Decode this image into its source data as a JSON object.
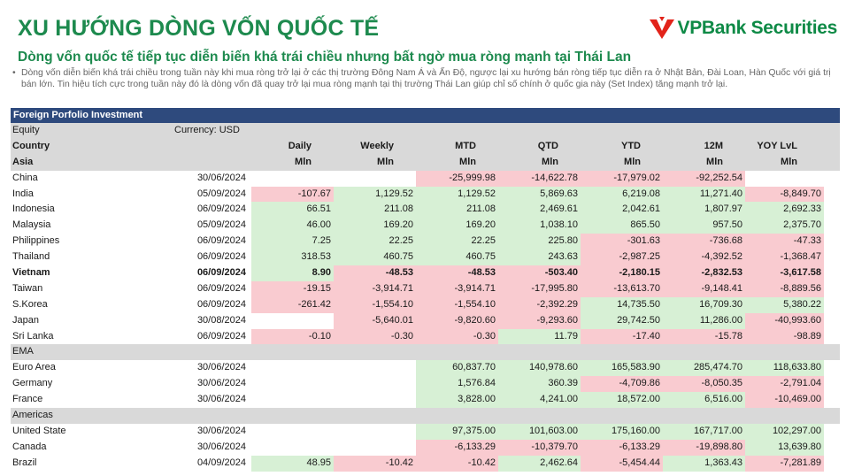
{
  "header": {
    "title": "XU HƯỚNG DÒNG VỐN QUỐC TẾ",
    "logo_text": "VPBank Securities",
    "subtitle": "Dòng vốn quốc tế tiếp tục diễn biến khá trái chiều nhưng bất ngờ mua ròng mạnh tại Thái Lan",
    "bullet": "Dòng vốn diễn biến khá trái chiều trong tuần này khi mua ròng trở lại ở các thị trường Đông Nam Á và Ấn Độ, ngược lại xu hướng bán ròng tiếp tục diễn ra ở Nhật Bản, Đài Loan, Hàn Quốc với giá trị bán lớn. Tin hiệu tích cực trong tuần này đó là dòng vốn đã quay trở lại mua ròng mạnh tại thị trường Thái Lan giúp chỉ số chính ở quốc gia này (Set Index) tăng mạnh trở lại.",
    "bullet_mark": "•"
  },
  "colors": {
    "brand_green": "#1d8a4e",
    "logo_red": "#e2231a",
    "table_header_bg": "#2e4a7d",
    "positive_bg": "#d7f0d5",
    "negative_bg": "#f9cbd0",
    "section_bg": "#d9d9d9"
  },
  "table": {
    "title": "Foreign Porfolio Investment",
    "equity_label": "Equity",
    "currency_label": "Currency: USD",
    "country_label": "Country",
    "asia_label": "Asia",
    "columns": [
      "Daily",
      "Weekly",
      "MTD",
      "QTD",
      "YTD",
      "12M",
      "YOY LvL"
    ],
    "unit": "Mln",
    "sections": [
      {
        "name": "Asia",
        "rows": [
          {
            "country": "China",
            "date": "30/06/2024",
            "values": [
              "",
              "",
              "-25,999.98",
              "-14,622.78",
              "-17,979.02",
              "-92,252.54",
              ""
            ]
          },
          {
            "country": "India",
            "date": "05/09/2024",
            "values": [
              "-107.67",
              "1,129.52",
              "1,129.52",
              "5,869.63",
              "6,219.08",
              "11,271.40",
              "-8,849.70"
            ]
          },
          {
            "country": "Indonesia",
            "date": "06/09/2024",
            "values": [
              "66.51",
              "211.08",
              "211.08",
              "2,469.61",
              "2,042.61",
              "1,807.97",
              "2,692.33"
            ]
          },
          {
            "country": "Malaysia",
            "date": "05/09/2024",
            "values": [
              "46.00",
              "169.20",
              "169.20",
              "1,038.10",
              "865.50",
              "957.50",
              "2,375.70"
            ]
          },
          {
            "country": "Philippines",
            "date": "06/09/2024",
            "values": [
              "7.25",
              "22.25",
              "22.25",
              "225.80",
              "-301.63",
              "-736.68",
              "-47.33"
            ]
          },
          {
            "country": "Thailand",
            "date": "06/09/2024",
            "values": [
              "318.53",
              "460.75",
              "460.75",
              "243.63",
              "-2,987.25",
              "-4,392.52",
              "-1,368.47"
            ]
          },
          {
            "country": "Vietnam",
            "date": "06/09/2024",
            "bold": true,
            "values": [
              "8.90",
              "-48.53",
              "-48.53",
              "-503.40",
              "-2,180.15",
              "-2,832.53",
              "-3,617.58"
            ]
          },
          {
            "country": "Taiwan",
            "date": "06/09/2024",
            "values": [
              "-19.15",
              "-3,914.71",
              "-3,914.71",
              "-17,995.80",
              "-13,613.70",
              "-9,148.41",
              "-8,889.56"
            ]
          },
          {
            "country": "S.Korea",
            "date": "06/09/2024",
            "values": [
              "-261.42",
              "-1,554.10",
              "-1,554.10",
              "-2,392.29",
              "14,735.50",
              "16,709.30",
              "5,380.22"
            ]
          },
          {
            "country": "Japan",
            "date": "30/08/2024",
            "values": [
              "",
              "-5,640.01",
              "-9,820.60",
              "-9,293.60",
              "29,742.50",
              "11,286.00",
              "-40,993.60"
            ]
          },
          {
            "country": "Sri Lanka",
            "date": "06/09/2024",
            "values": [
              "-0.10",
              "-0.30",
              "-0.30",
              "11.79",
              "-17.40",
              "-15.78",
              "-98.89"
            ]
          }
        ]
      },
      {
        "name": "EMA",
        "rows": [
          {
            "country": "Euro Area",
            "date": "30/06/2024",
            "values": [
              "",
              "",
              "60,837.70",
              "140,978.60",
              "165,583.90",
              "285,474.70",
              "118,633.80"
            ]
          },
          {
            "country": "Germany",
            "date": "30/06/2024",
            "values": [
              "",
              "",
              "1,576.84",
              "360.39",
              "-4,709.86",
              "-8,050.35",
              "-2,791.04"
            ]
          },
          {
            "country": "France",
            "date": "30/06/2024",
            "values": [
              "",
              "",
              "3,828.00",
              "4,241.00",
              "18,572.00",
              "6,516.00",
              "-10,469.00"
            ]
          }
        ]
      },
      {
        "name": "Americas",
        "rows": [
          {
            "country": "United State",
            "date": "30/06/2024",
            "values": [
              "",
              "",
              "97,375.00",
              "101,603.00",
              "175,160.00",
              "167,717.00",
              "102,297.00"
            ]
          },
          {
            "country": "Canada",
            "date": "30/06/2024",
            "values": [
              "",
              "",
              "-6,133.29",
              "-10,379.70",
              "-6,133.29",
              "-19,898.80",
              "13,639.80"
            ]
          },
          {
            "country": "Brazil",
            "date": "04/09/2024",
            "values": [
              "48.95",
              "-10.42",
              "-10.42",
              "2,462.64",
              "-5,454.44",
              "1,363.43",
              "-7,281.89"
            ]
          }
        ]
      }
    ]
  }
}
